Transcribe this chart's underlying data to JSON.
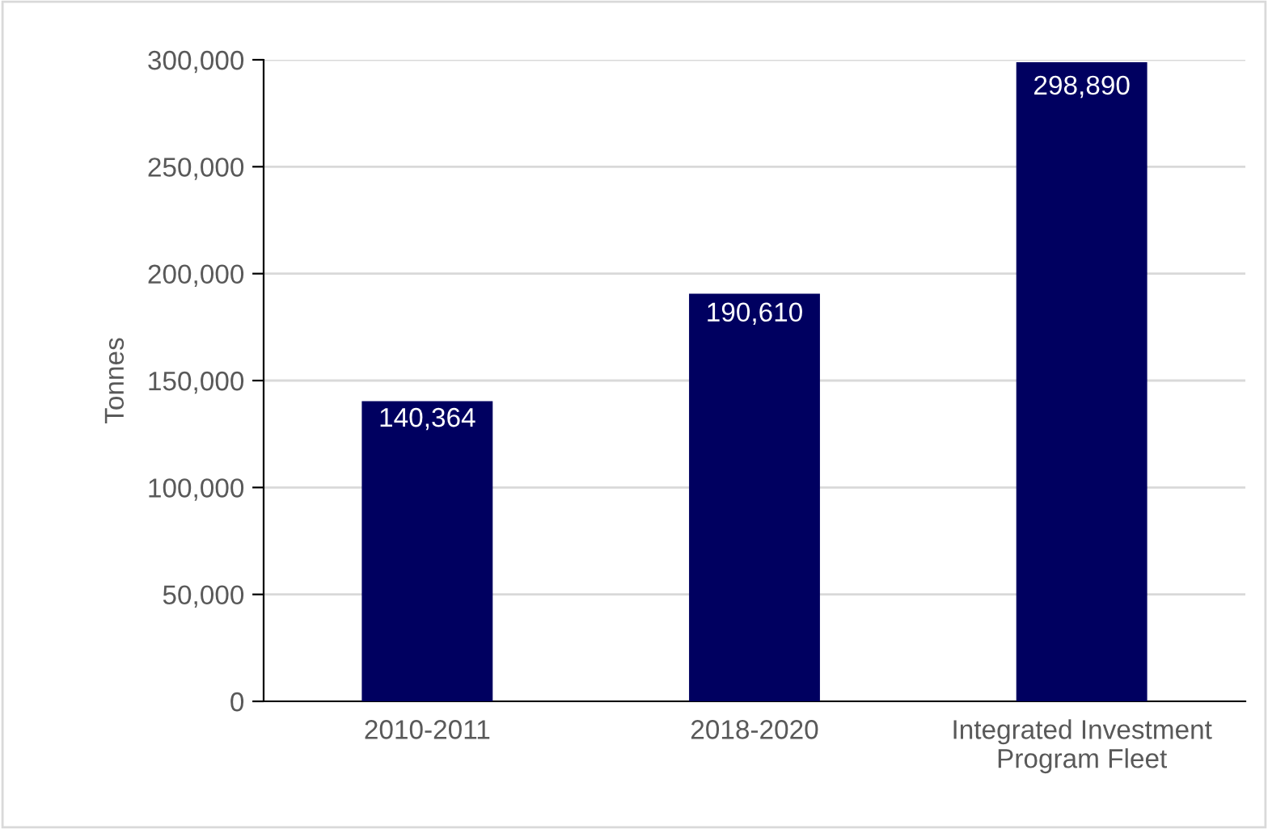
{
  "chart_data": {
    "type": "bar",
    "ylabel": "Tonnes",
    "categories": [
      "2010-2011",
      "2018-2020",
      "Integrated Investment\nProgram Fleet"
    ],
    "values": [
      140364,
      190610,
      298890
    ],
    "value_labels": [
      "140,364",
      "190,610",
      "298,890"
    ],
    "color": "#000060",
    "ylim": [
      0,
      300000
    ],
    "yticks": [
      {
        "value": 0,
        "label": "0"
      },
      {
        "value": 50000,
        "label": "50,000"
      },
      {
        "value": 100000,
        "label": "100,000"
      },
      {
        "value": 150000,
        "label": "150,000"
      },
      {
        "value": 200000,
        "label": "200,000"
      },
      {
        "value": 250000,
        "label": "250,000"
      },
      {
        "value": 300000,
        "label": "300,000"
      }
    ],
    "grid": "y"
  }
}
